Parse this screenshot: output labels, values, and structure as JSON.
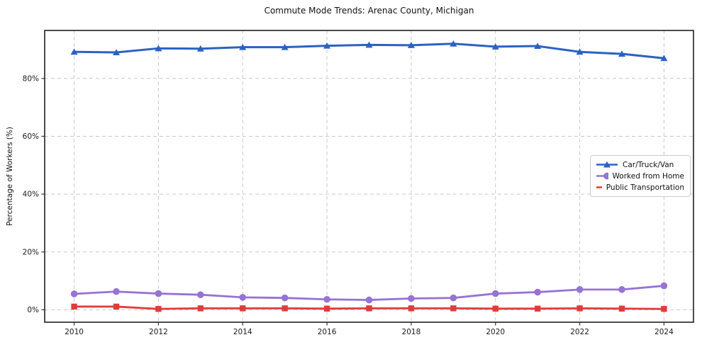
{
  "title": "Commute Mode Trends: Arenac County, Michigan",
  "chart_data": {
    "type": "line",
    "title": "Commute Mode Trends: Arenac County, Michigan",
    "xlabel": "",
    "ylabel": "Percentage of Workers (%)",
    "x": [
      2010,
      2011,
      2012,
      2013,
      2014,
      2015,
      2016,
      2017,
      2018,
      2019,
      2020,
      2021,
      2022,
      2023,
      2024
    ],
    "series": [
      {
        "name": "Car/Truck/Van",
        "marker": "triangle",
        "color": "#2b62c2",
        "values": [
          89.2,
          89.0,
          90.4,
          90.3,
          90.8,
          90.8,
          91.3,
          91.6,
          91.5,
          92.0,
          91.0,
          91.2,
          89.2,
          88.5,
          87.0
        ]
      },
      {
        "name": "Worked from Home",
        "marker": "circle",
        "color": "#9673d4",
        "values": [
          5.5,
          6.3,
          5.6,
          5.2,
          4.3,
          4.1,
          3.6,
          3.4,
          3.9,
          4.1,
          5.6,
          6.1,
          7.0,
          7.0,
          8.3
        ]
      },
      {
        "name": "Public Transportation",
        "marker": "square",
        "color": "#e03c3c",
        "values": [
          1.1,
          1.1,
          0.3,
          0.5,
          0.5,
          0.5,
          0.4,
          0.5,
          0.5,
          0.5,
          0.4,
          0.4,
          0.5,
          0.4,
          0.3
        ]
      }
    ],
    "xlim": [
      2009.3,
      2024.7
    ],
    "ylim": [
      -4.3,
      96.6
    ],
    "xtick_values": [
      2010,
      2012,
      2014,
      2016,
      2018,
      2020,
      2022,
      2024
    ],
    "xtick_labels": [
      "2010",
      "2012",
      "2014",
      "2016",
      "2018",
      "2020",
      "2022",
      "2024"
    ],
    "ytick_values": [
      0,
      20,
      40,
      60,
      80
    ],
    "ytick_labels": [
      "0%",
      "20%",
      "40%",
      "60%",
      "80%"
    ],
    "grid": true,
    "legend_position": "center right"
  },
  "colors": {
    "background": "#ffffff",
    "grid": "#c9c9c9",
    "axis_border": "#1f1f1f",
    "tick": "#333333",
    "tick_label": "#1a1a1a"
  }
}
